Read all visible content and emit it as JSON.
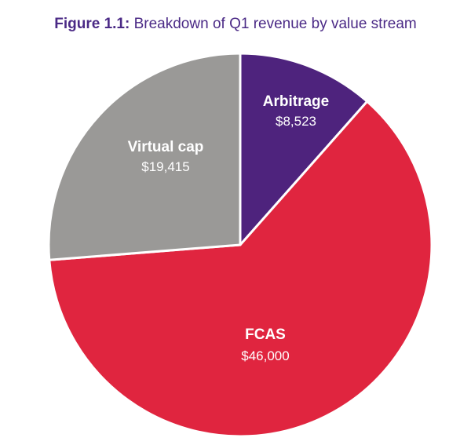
{
  "chart_data": {
    "type": "pie",
    "title_prefix": "Figure 1.1:",
    "title": "Breakdown of Q1 revenue by value stream",
    "start_angle_deg": 0,
    "direction": "clockwise",
    "slices": [
      {
        "label": "Arbitrage",
        "value": 8523,
        "value_label": "$8,523",
        "color": "#4e237d"
      },
      {
        "label": "FCAS",
        "value": 46000,
        "value_label": "$46,000",
        "color": "#e0253f"
      },
      {
        "label": "Virtual cap",
        "value": 19415,
        "value_label": "$19,415",
        "color": "#9a9997"
      }
    ]
  }
}
